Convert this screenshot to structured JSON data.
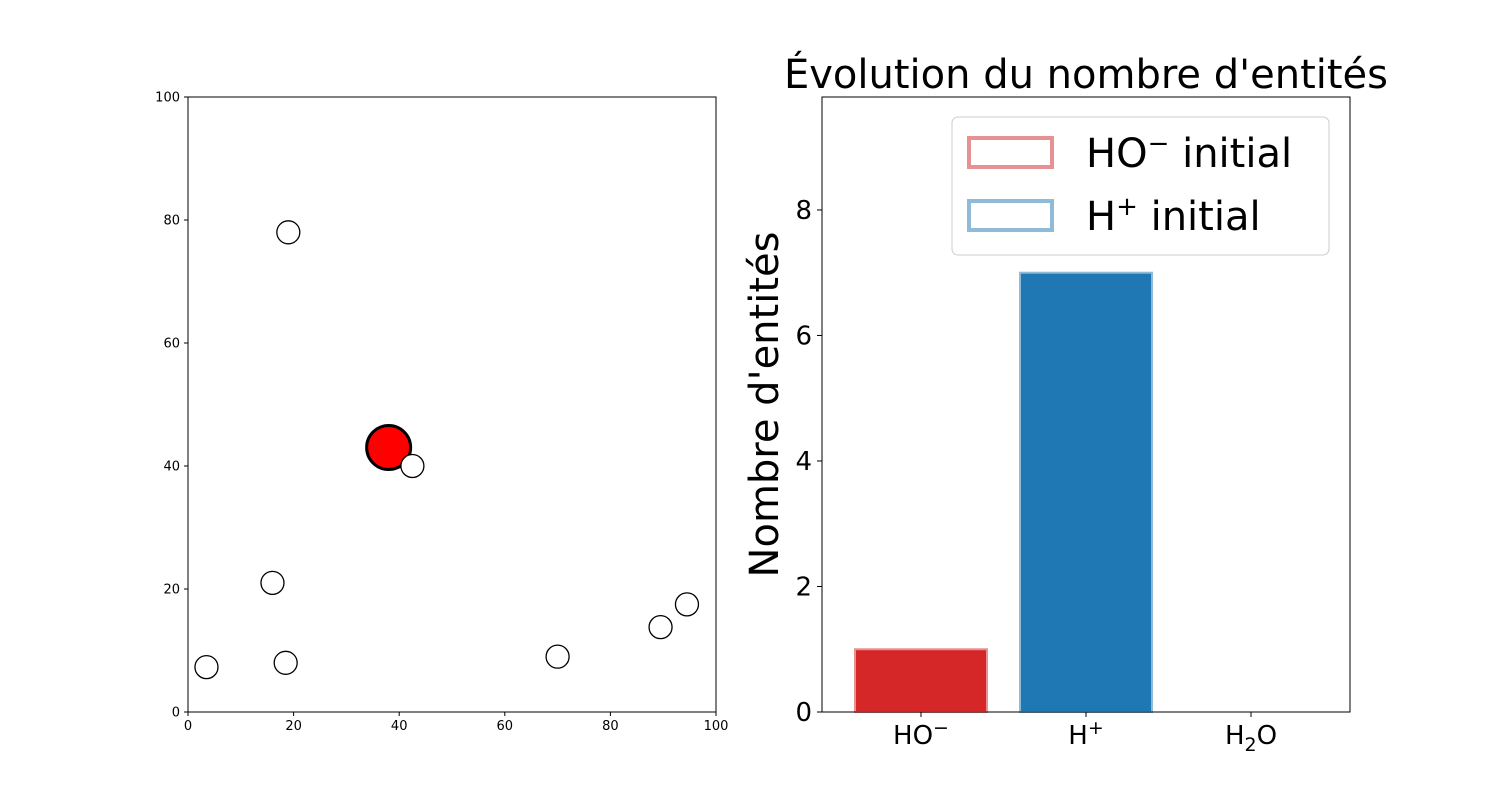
{
  "chart_data": [
    {
      "type": "scatter",
      "xlim": [
        0,
        100
      ],
      "ylim": [
        0,
        100
      ],
      "xticks": [
        "0",
        "20",
        "40",
        "60",
        "80",
        "100"
      ],
      "yticks": [
        "0",
        "20",
        "40",
        "60",
        "80",
        "100"
      ],
      "grid": false,
      "series": [
        {
          "marker": "large-filled-circle",
          "color": "#ff0000",
          "points": [
            {
              "x": 38,
              "y": 43
            }
          ]
        },
        {
          "marker": "small-open-circle",
          "color": "#ffffff",
          "points": [
            {
              "x": 19,
              "y": 78
            },
            {
              "x": 42.5,
              "y": 40
            },
            {
              "x": 16,
              "y": 21
            },
            {
              "x": 3.5,
              "y": 7.3
            },
            {
              "x": 18.5,
              "y": 8
            },
            {
              "x": 70,
              "y": 9
            },
            {
              "x": 89.5,
              "y": 13.8
            },
            {
              "x": 94.5,
              "y": 17.5
            }
          ]
        }
      ]
    },
    {
      "type": "bar",
      "title": "Évolution du nombre d'entités",
      "ylabel": "Nombre d'entités",
      "ylim": [
        0,
        9.8
      ],
      "yticks": [
        "0",
        "2",
        "4",
        "6",
        "8"
      ],
      "grid": false,
      "categories": [
        {
          "base": "HO",
          "sup": "−",
          "sub": ""
        },
        {
          "base": "H",
          "sup": "+",
          "sub": ""
        },
        {
          "base": "H",
          "sup": "",
          "sub": "2",
          "tail": "O"
        }
      ],
      "values": [
        1,
        7,
        0
      ],
      "bar_colors": [
        "#d62728",
        "#1f77b4",
        "#2ca02c"
      ],
      "outline_colors": [
        "#e89193",
        "#8fbbd9",
        "#8fd18f"
      ],
      "legend": {
        "placement": "top-right",
        "entries": [
          {
            "base": "HO",
            "sup": "−",
            "rest": " initial",
            "color": "#e89193"
          },
          {
            "base": "H",
            "sup": "+",
            "rest": " initial",
            "color": "#8fbbd9"
          }
        ]
      }
    }
  ]
}
